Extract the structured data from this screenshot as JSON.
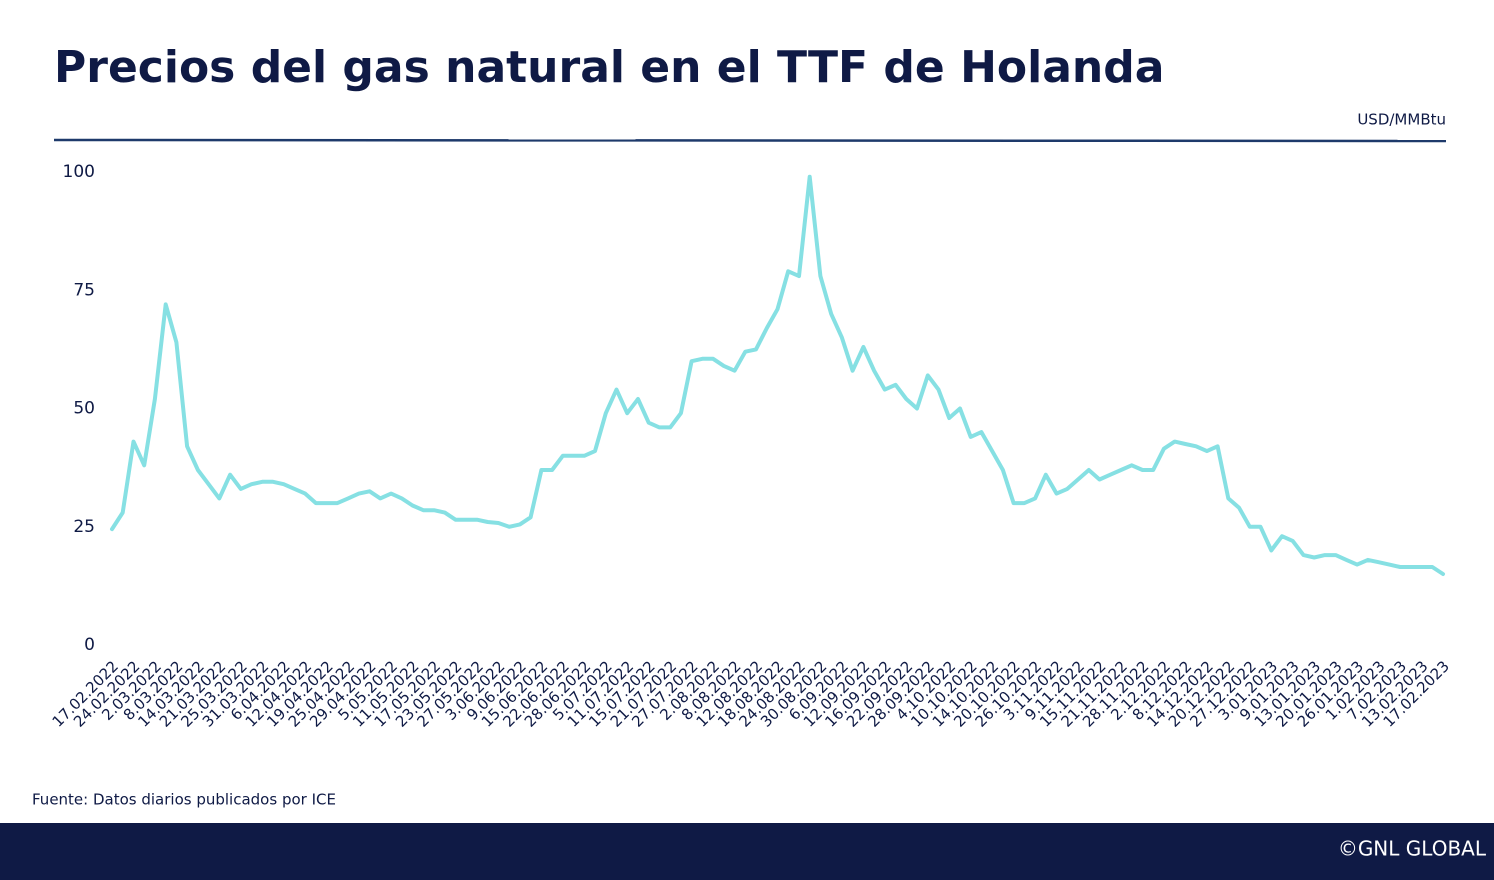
{
  "chart_data": {
    "type": "line",
    "title": "Precios del gas natural en el TTF de Holanda",
    "unit": "USD/MMBtu",
    "source": "Fuente: Datos diarios publicados por ICE",
    "credit": "©GNL GLOBAL",
    "color": "#86e0e3",
    "ylim": [
      0,
      100
    ],
    "yticks": [
      0,
      25,
      50,
      75,
      100
    ],
    "grid": false,
    "categories": [
      "17.02.2022",
      null,
      "24.02.2022",
      null,
      "2.03.2022",
      null,
      "8.03.2022",
      null,
      "14.03.2022",
      null,
      "21.03.2022",
      null,
      "25.03.2022",
      null,
      "31.03.2022",
      null,
      "6.04.2022",
      null,
      "12.04.2022",
      null,
      "19.04.2022",
      null,
      "25.04.2022",
      null,
      "29.04.2022",
      null,
      "5.05.2022",
      null,
      "11.05.2022",
      null,
      "17.05.2022",
      null,
      "23.05.2022",
      null,
      "27.05.2022",
      null,
      "3.06.2022",
      null,
      "9.06.2022",
      null,
      "15.06.2022",
      null,
      "22.06.2022",
      null,
      "28.06.2022",
      null,
      "5.07.2022",
      null,
      "11.07.2022",
      null,
      "15.07.2022",
      null,
      "21.07.2022",
      null,
      "27.07.2022",
      null,
      "2.08.2022",
      null,
      "8.08.2022",
      null,
      "12.08.2022",
      null,
      "18.08.2022",
      null,
      "24.08.2022",
      null,
      "30.08.2022",
      null,
      "6.09.2022",
      null,
      "12.09.2022",
      null,
      "16.09.2022",
      null,
      "22.09.2022",
      null,
      "28.09.2022",
      null,
      "4.10.2022",
      null,
      "10.10.2022",
      null,
      "14.10.2022",
      null,
      "20.10.2022",
      null,
      "26.10.2022",
      null,
      "3.11.2022",
      null,
      "9.11.2022",
      null,
      "15.11.2022",
      null,
      "21.11.2022",
      null,
      "28.11.2022",
      null,
      "2.12.2022",
      null,
      "8.12.2022",
      null,
      "14.12.2022",
      null,
      "20.12.2022",
      null,
      "27.12.2022",
      null,
      "3.01.2023",
      null,
      "9.01.2023",
      null,
      "13.01.2023",
      null,
      "20.01.2023",
      null,
      "26.01.2023",
      null,
      "1.02.2023",
      null,
      "7.02.2023",
      null,
      "13.02.2023",
      null,
      "17.02.2023"
    ],
    "values": [
      24.5,
      28,
      43,
      38,
      52,
      72,
      64,
      42,
      37,
      34,
      31,
      36,
      33,
      34,
      34.5,
      34.5,
      34,
      33,
      32,
      30,
      30,
      30,
      31,
      32,
      32.5,
      31,
      32,
      31,
      29.5,
      28.5,
      28.5,
      28,
      26.5,
      26.5,
      26.5,
      26,
      25.8,
      25,
      25.5,
      27,
      37,
      37,
      40,
      40,
      40,
      41,
      49,
      54,
      49,
      52,
      47,
      46,
      46,
      49,
      60,
      60.5,
      60.5,
      59,
      58,
      62,
      62.5,
      67,
      71,
      79,
      78,
      99,
      78,
      70,
      65,
      58,
      63,
      58,
      54,
      55,
      52,
      50,
      57,
      54,
      48,
      50,
      44,
      45,
      41,
      37,
      30,
      30,
      31,
      36,
      32,
      33,
      35,
      37,
      35,
      36,
      37,
      38,
      37,
      37,
      41.5,
      43,
      42.5,
      42,
      41,
      42,
      31,
      29,
      25,
      25,
      20,
      23,
      22,
      19,
      18.5,
      19,
      19,
      18,
      17,
      18,
      17.5,
      17,
      16.5,
      16.5,
      16.5,
      16.5,
      15
    ]
  }
}
